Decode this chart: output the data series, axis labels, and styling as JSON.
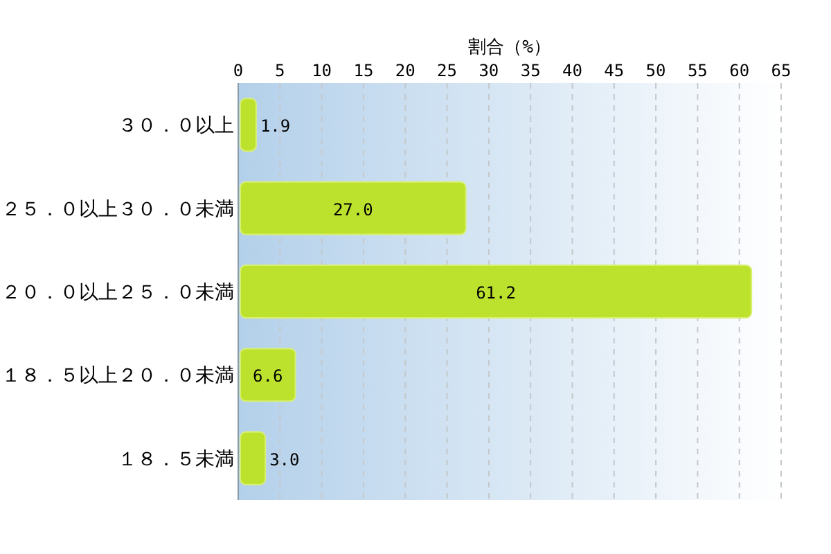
{
  "chart_data": {
    "type": "bar",
    "orientation": "horizontal",
    "xlabel": "割合（%）",
    "categories": [
      "３０．０以上",
      "２５．０以上３０．０未満",
      "２０．０以上２５．０未満",
      "１８．５以上２０．０未満",
      "１８．５未満"
    ],
    "values": [
      1.9,
      27.0,
      61.2,
      6.6,
      3.0
    ],
    "value_labels": [
      "1.9",
      "27.0",
      "61.2",
      "6.6",
      "3.0"
    ],
    "color": "#bde22e",
    "xlim": [
      0,
      65
    ],
    "xticks": [
      0,
      5,
      10,
      15,
      20,
      25,
      30,
      35,
      40,
      45,
      50,
      55,
      60,
      65
    ],
    "grid": "x"
  }
}
